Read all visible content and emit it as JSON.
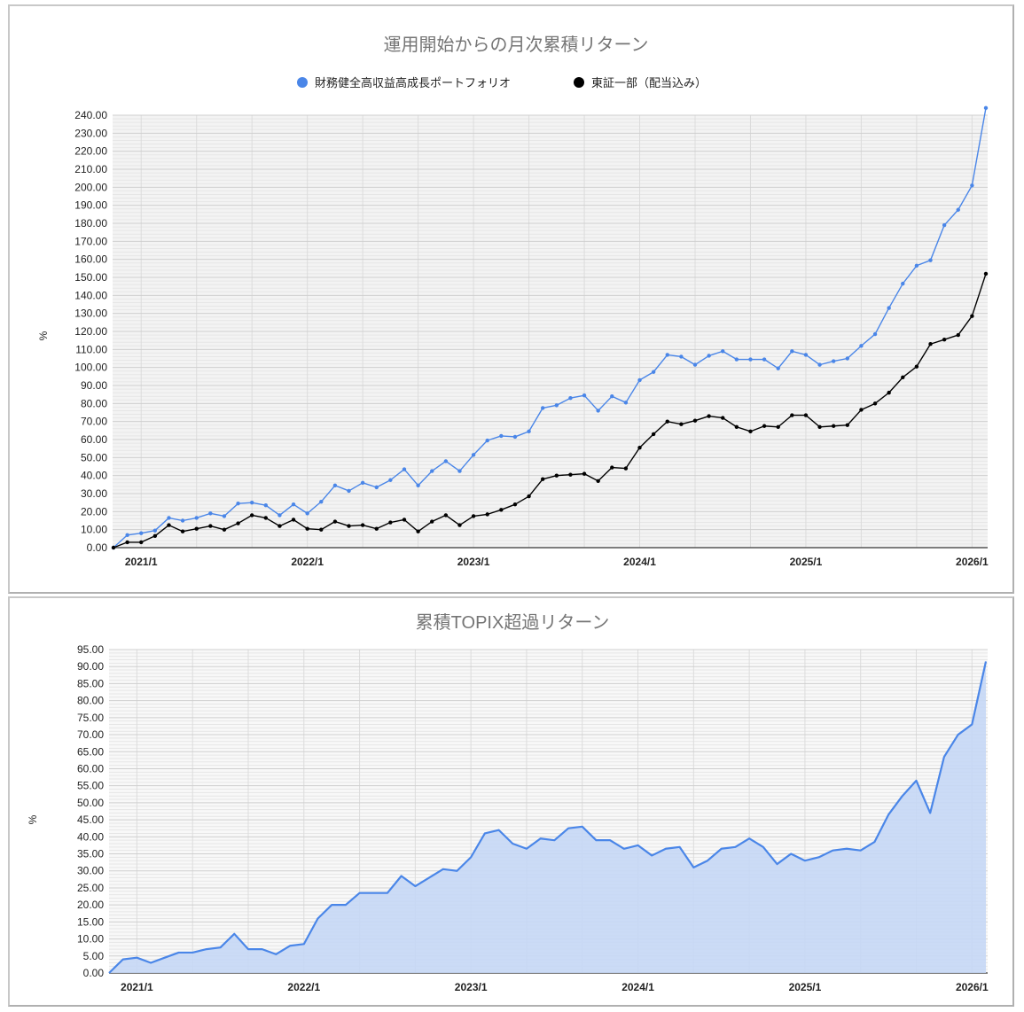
{
  "chart_data": [
    {
      "type": "line",
      "title": "運用開始からの月次累積リターン",
      "xlabel": "",
      "ylabel": "%",
      "ylim": [
        0,
        240
      ],
      "y_ticks": [
        "0.00",
        "10.00",
        "20.00",
        "30.00",
        "40.00",
        "50.00",
        "60.00",
        "70.00",
        "80.00",
        "90.00",
        "100.00",
        "110.00",
        "120.00",
        "130.00",
        "140.00",
        "150.00",
        "160.00",
        "170.00",
        "180.00",
        "190.00",
        "200.00",
        "210.00",
        "220.00",
        "230.00",
        "240.00"
      ],
      "x_tick_labels": [
        "2021/1",
        "2022/1",
        "2023/1",
        "2024/1",
        "2025/1",
        "2026/1"
      ],
      "x_start": "2020/11",
      "x_end": "2026/2",
      "grid": true,
      "legend_position": "top",
      "series": [
        {
          "name": "財務健全高収益高成長ポートフォリオ",
          "color": "#4a86e8",
          "values": [
            0,
            7,
            8,
            9.5,
            16.5,
            15,
            16.5,
            19,
            17.5,
            24.5,
            25,
            23.5,
            18,
            24,
            19,
            25.5,
            34.5,
            31.5,
            36,
            33.5,
            37.5,
            43.5,
            34.5,
            42.5,
            48,
            42.5,
            51.5,
            59.5,
            62,
            61.5,
            64.5,
            77.5,
            79,
            83,
            84.5,
            76,
            84,
            80.5,
            93,
            97.5,
            107,
            106,
            101.5,
            106.5,
            109,
            104.5,
            104.5,
            104.5,
            99.5,
            109,
            107,
            101.5,
            103.5,
            105,
            112,
            118.5,
            133,
            146.5,
            156.5,
            159.5,
            179,
            187.5,
            201,
            244
          ]
        },
        {
          "name": "東証一部（配当込み）",
          "color": "#000000",
          "values": [
            0,
            3,
            3,
            6.5,
            12.5,
            9,
            10.5,
            12,
            10,
            13.5,
            18,
            16.5,
            12,
            15.5,
            10.5,
            10,
            14.5,
            12,
            12.5,
            10.5,
            14,
            15.5,
            9,
            14.5,
            18,
            12.5,
            17.5,
            18.5,
            21,
            24,
            28.5,
            38,
            40,
            40.5,
            41,
            37,
            44.5,
            44,
            55.5,
            63,
            70,
            68.5,
            70.5,
            73,
            72,
            67,
            64.5,
            67.5,
            67,
            73.5,
            73.5,
            67,
            67.5,
            68,
            76.5,
            80,
            86,
            94.5,
            100.5,
            113,
            115.5,
            118,
            128.5,
            152
          ]
        }
      ]
    },
    {
      "type": "area",
      "title": "累積TOPIX超過リターン",
      "xlabel": "",
      "ylabel": "%",
      "ylim": [
        0,
        95
      ],
      "y_ticks": [
        "0.00",
        "5.00",
        "10.00",
        "15.00",
        "20.00",
        "25.00",
        "30.00",
        "35.00",
        "40.00",
        "45.00",
        "50.00",
        "55.00",
        "60.00",
        "65.00",
        "70.00",
        "75.00",
        "80.00",
        "85.00",
        "90.00",
        "95.00"
      ],
      "x_tick_labels": [
        "2021/1",
        "2022/1",
        "2023/1",
        "2024/1",
        "2025/1",
        "2026/1"
      ],
      "x_start": "2020/11",
      "x_end": "2026/2",
      "grid": true,
      "series": [
        {
          "name": "累積TOPIX超過リターン",
          "color": "#4a86e8",
          "fill": "#c5d7f5",
          "values": [
            0,
            4,
            4.5,
            3,
            4.5,
            6,
            6,
            7,
            7.5,
            11.5,
            7,
            7,
            5.5,
            8,
            8.5,
            16,
            20,
            20,
            23.5,
            23.5,
            23.5,
            28.5,
            25.5,
            28,
            30.5,
            30,
            34,
            41,
            42,
            38,
            36.5,
            39.5,
            39,
            42.5,
            43,
            39,
            39,
            36.5,
            37.5,
            34.5,
            36.5,
            37,
            31,
            33,
            36.5,
            37,
            39.5,
            37,
            32,
            35,
            33,
            34,
            36,
            36.5,
            36,
            38.5,
            46.5,
            52,
            56.5,
            47,
            63.5,
            70,
            73,
            91.5
          ]
        }
      ]
    }
  ],
  "top": {
    "title": "運用開始からの月次累積リターン",
    "legend": [
      {
        "label": "財務健全高収益高成長ポートフォリオ",
        "color": "#4a86e8"
      },
      {
        "label": "東証一部（配当込み）",
        "color": "#000000"
      }
    ],
    "ylabel": "%"
  },
  "bottom": {
    "title": "累積TOPIX超過リターン",
    "ylabel": "%"
  }
}
